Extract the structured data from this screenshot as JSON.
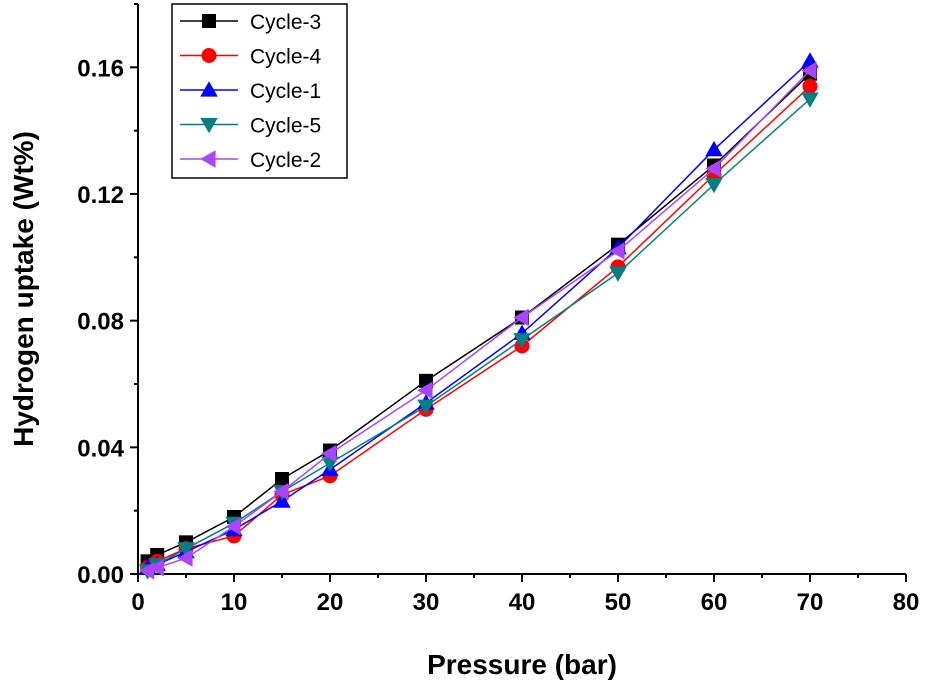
{
  "chart_data": {
    "type": "line",
    "title": "",
    "xlabel": "Pressure (bar)",
    "ylabel": "Hydrogen uptake (Wt%)",
    "xlim": [
      0,
      80
    ],
    "ylim": [
      0,
      0.18
    ],
    "xticks": [
      0,
      10,
      20,
      30,
      40,
      50,
      60,
      70,
      80
    ],
    "xtick_labels": [
      "0",
      "10",
      "20",
      "30",
      "40",
      "50",
      "60",
      "70",
      "80"
    ],
    "yticks": [
      0,
      0.04,
      0.08,
      0.12,
      0.16
    ],
    "ytick_labels": [
      "0.00",
      "0.04",
      "0.08",
      "0.12",
      "0.16"
    ],
    "grid": false,
    "legend_position": "top-left",
    "x": [
      1,
      2,
      5,
      10,
      15,
      20,
      30,
      40,
      50,
      60,
      70
    ],
    "series": [
      {
        "name": "Cycle-3",
        "color": "#000000",
        "marker": "square",
        "values": [
          0.004,
          0.006,
          0.01,
          0.018,
          0.03,
          0.039,
          0.061,
          0.081,
          0.104,
          0.129,
          0.158
        ]
      },
      {
        "name": "Cycle-4",
        "color": "#ff0000",
        "marker": "circle",
        "values": [
          0.002,
          0.004,
          0.008,
          0.012,
          0.025,
          0.031,
          0.052,
          0.072,
          0.097,
          0.126,
          0.154
        ]
      },
      {
        "name": "Cycle-1",
        "color": "#0000ff",
        "marker": "triangle-up",
        "values": [
          0.002,
          0.003,
          0.007,
          0.014,
          0.023,
          0.033,
          0.054,
          0.076,
          0.103,
          0.134,
          0.162
        ]
      },
      {
        "name": "Cycle-5",
        "color": "#008080",
        "marker": "triangle-down",
        "values": [
          0.001,
          0.003,
          0.008,
          0.016,
          0.026,
          0.035,
          0.053,
          0.074,
          0.095,
          0.123,
          0.15
        ]
      },
      {
        "name": "Cycle-2",
        "color": "#aa44ff",
        "marker": "triangle-left",
        "values": [
          0.001,
          0.002,
          0.005,
          0.015,
          0.026,
          0.038,
          0.058,
          0.081,
          0.102,
          0.128,
          0.159
        ]
      }
    ]
  }
}
